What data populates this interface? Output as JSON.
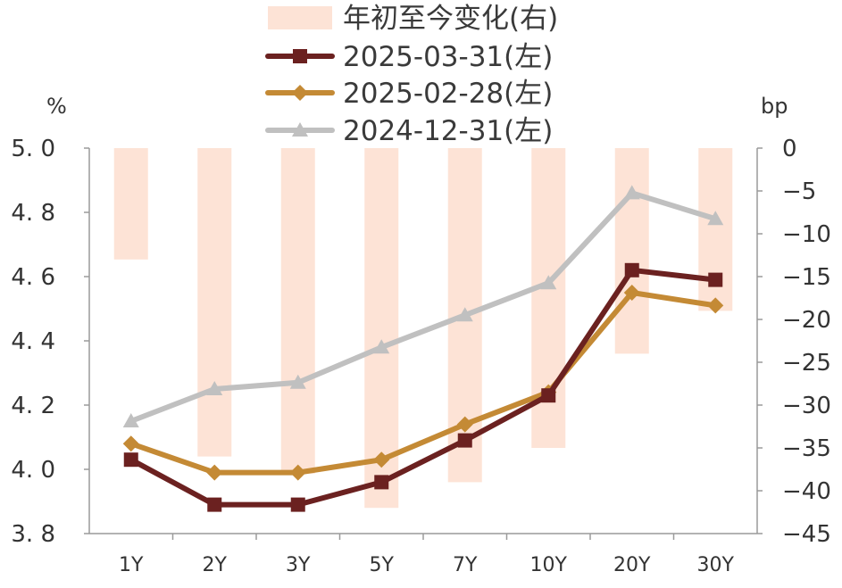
{
  "chart_data": {
    "type": "bar+line",
    "title": "",
    "categories": [
      "1Y",
      "2Y",
      "3Y",
      "5Y",
      "7Y",
      "10Y",
      "20Y",
      "30Y"
    ],
    "bar_series": {
      "name": "年初至今变化(右)",
      "axis": "right",
      "color": "#fde3d6",
      "values": [
        -13,
        -36,
        -38,
        -42,
        -39,
        -35,
        -24,
        -19
      ]
    },
    "line_series": [
      {
        "name": "2025-03-31(左)",
        "axis": "left",
        "color": "#6b2120",
        "marker": "square",
        "values": [
          4.03,
          3.89,
          3.89,
          3.96,
          4.09,
          4.23,
          4.62,
          4.59
        ]
      },
      {
        "name": "2025-02-28(左)",
        "axis": "left",
        "color": "#c48a35",
        "marker": "diamond",
        "values": [
          4.08,
          3.99,
          3.99,
          4.03,
          4.14,
          4.24,
          4.55,
          4.51
        ]
      },
      {
        "name": "2024-12-31(左)",
        "axis": "left",
        "color": "#c0c0c0",
        "marker": "triangle",
        "values": [
          4.15,
          4.25,
          4.27,
          4.38,
          4.48,
          4.58,
          4.86,
          4.78
        ]
      }
    ],
    "left_axis": {
      "unit": "%",
      "ylim": [
        3.8,
        5.0
      ],
      "ticks": [
        5.0,
        4.8,
        4.6,
        4.4,
        4.2,
        4.0,
        3.8
      ],
      "tick_labels": [
        "5. 0",
        "4. 8",
        "4. 6",
        "4. 4",
        "4. 2",
        "4. 0",
        "3. 8"
      ]
    },
    "right_axis": {
      "unit": "bp",
      "ylim": [
        -45,
        0
      ],
      "ticks": [
        0,
        -5,
        -10,
        -15,
        -20,
        -25,
        -30,
        -35,
        -40,
        -45
      ],
      "tick_labels": [
        "0",
        "−5",
        "−10",
        "−15",
        "−20",
        "−25",
        "−30",
        "−35",
        "−40",
        "−45"
      ]
    },
    "legend_position": "top-center",
    "grid": false
  }
}
